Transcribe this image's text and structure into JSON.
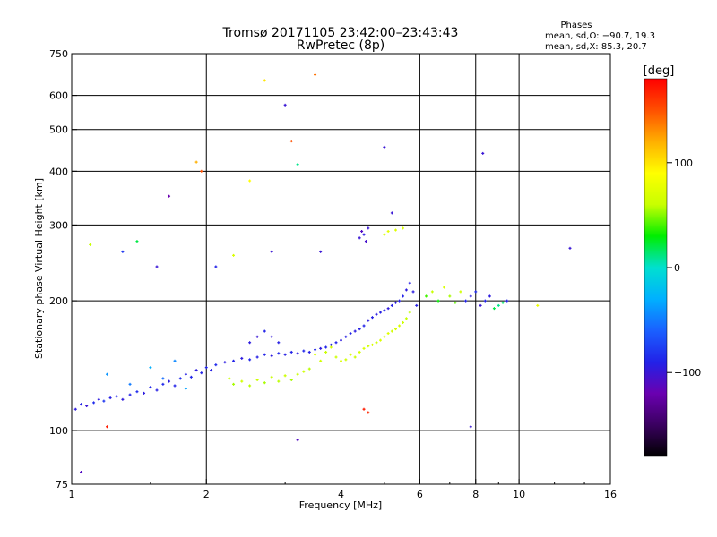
{
  "header": {
    "title_line1": "Tromsø 20171105 23:42:00–23:43:43",
    "title_line2": "RwPretec (8p)",
    "phases_title": "Phases",
    "phases_o": "mean, sd,O: −90.7, 19.3",
    "phases_x": "mean, sd,X:  85.3, 20.7"
  },
  "colorbar": {
    "unit": "[deg]",
    "ticks": [
      {
        "label": "100",
        "value": 100
      },
      {
        "label": "0",
        "value": 0
      },
      {
        "label": "−100",
        "value": -100
      }
    ],
    "range": [
      -180,
      180
    ],
    "colors": [
      "#000000",
      "#3a0060",
      "#6a00b0",
      "#2222e8",
      "#1a60ff",
      "#00b0ff",
      "#00e0d0",
      "#00ee00",
      "#c8ff00",
      "#ffff00",
      "#ffb000",
      "#ff5000",
      "#ff0000"
    ]
  },
  "chart_data": {
    "type": "scatter",
    "title": "Tromsø 20171105 23:42:00–23:43:43",
    "subtitle": "RwPretec (8p)",
    "xlabel": "Frequency [MHz]",
    "ylabel": "Stationary phase Virtual Height [km]",
    "x_scale": "log",
    "y_scale": "log",
    "xlim": [
      1,
      16
    ],
    "ylim": [
      75,
      750
    ],
    "x_ticks": [
      1,
      2,
      4,
      6,
      8,
      10,
      16
    ],
    "x_tick_labels": [
      "1",
      "2",
      "4",
      "6",
      "8",
      "10",
      "16"
    ],
    "y_ticks": [
      75,
      100,
      200,
      300,
      400,
      500,
      600,
      750
    ],
    "y_tick_labels": [
      "75",
      "100",
      "200",
      "300",
      "400",
      "500",
      "600",
      "750"
    ],
    "x_gridlines": [
      2,
      4,
      6,
      8,
      10
    ],
    "y_gridlines": [
      100,
      200,
      300,
      400,
      500,
      600
    ],
    "grid": true,
    "color_variable": "phase [deg]",
    "series": [
      {
        "points": [
          [
            1.02,
            112,
            -95
          ],
          [
            1.05,
            115,
            -90
          ],
          [
            1.08,
            114,
            -100
          ],
          [
            1.12,
            116,
            -85
          ],
          [
            1.15,
            118,
            -95
          ],
          [
            1.18,
            117,
            -80
          ],
          [
            1.22,
            119,
            -92
          ],
          [
            1.26,
            120,
            -88
          ],
          [
            1.3,
            118,
            -96
          ],
          [
            1.35,
            121,
            -90
          ],
          [
            1.4,
            123,
            -85
          ],
          [
            1.45,
            122,
            -95
          ],
          [
            1.5,
            126,
            -88
          ],
          [
            1.55,
            124,
            -92
          ],
          [
            1.6,
            128,
            -86
          ],
          [
            1.65,
            130,
            -94
          ],
          [
            1.7,
            127,
            -90
          ],
          [
            1.75,
            132,
            -85
          ],
          [
            1.8,
            135,
            -92
          ],
          [
            1.85,
            133,
            -88
          ],
          [
            1.9,
            138,
            -95
          ],
          [
            1.95,
            136,
            -90
          ],
          [
            2.0,
            140,
            -88
          ],
          [
            2.05,
            138,
            -92
          ],
          [
            2.1,
            142,
            -86
          ],
          [
            2.2,
            144,
            -94
          ],
          [
            2.3,
            145,
            -90
          ],
          [
            2.4,
            147,
            -95
          ],
          [
            2.5,
            146,
            -88
          ],
          [
            2.6,
            148,
            -92
          ],
          [
            2.7,
            150,
            -90
          ],
          [
            2.8,
            149,
            -95
          ],
          [
            2.9,
            151,
            -88
          ],
          [
            3.0,
            150,
            -92
          ],
          [
            3.1,
            152,
            -90
          ],
          [
            3.2,
            151,
            -95
          ],
          [
            3.3,
            153,
            -88
          ],
          [
            3.4,
            152,
            -92
          ],
          [
            3.5,
            154,
            -90
          ],
          [
            3.6,
            155,
            -95
          ],
          [
            3.7,
            156,
            -88
          ],
          [
            3.8,
            158,
            -92
          ],
          [
            3.9,
            160,
            -90
          ],
          [
            4.0,
            162,
            -95
          ],
          [
            4.1,
            165,
            -92
          ],
          [
            4.2,
            168,
            -90
          ],
          [
            4.3,
            170,
            -94
          ],
          [
            4.4,
            172,
            -92
          ],
          [
            4.5,
            175,
            -90
          ],
          [
            4.6,
            180,
            -95
          ],
          [
            4.7,
            183,
            -92
          ],
          [
            4.8,
            186,
            -94
          ],
          [
            4.9,
            188,
            -92
          ],
          [
            5.0,
            190,
            -90
          ],
          [
            5.1,
            192,
            -96
          ],
          [
            5.2,
            195,
            -92
          ],
          [
            5.3,
            198,
            -94
          ],
          [
            5.4,
            200,
            -92
          ],
          [
            5.5,
            205,
            -90
          ],
          [
            5.6,
            212,
            -95
          ],
          [
            5.7,
            220,
            -92
          ],
          [
            5.8,
            210,
            -94
          ],
          [
            5.9,
            195,
            -92
          ]
        ]
      },
      {
        "points": [
          [
            1.2,
            135,
            -40
          ],
          [
            1.35,
            128,
            -50
          ],
          [
            1.5,
            140,
            -30
          ],
          [
            1.6,
            132,
            -55
          ],
          [
            1.7,
            145,
            -45
          ],
          [
            1.8,
            125,
            -35
          ],
          [
            2.25,
            132,
            60
          ],
          [
            2.3,
            128,
            55
          ],
          [
            2.4,
            130,
            65
          ],
          [
            2.5,
            127,
            58
          ],
          [
            2.6,
            131,
            62
          ],
          [
            2.7,
            129,
            55
          ],
          [
            2.8,
            133,
            60
          ],
          [
            2.9,
            130,
            58
          ],
          [
            3.0,
            134,
            62
          ],
          [
            3.1,
            131,
            55
          ],
          [
            3.2,
            135,
            60
          ],
          [
            3.3,
            137,
            64
          ],
          [
            3.4,
            139,
            58
          ],
          [
            3.5,
            150,
            70
          ],
          [
            3.6,
            145,
            65
          ],
          [
            3.7,
            152,
            60
          ],
          [
            3.8,
            156,
            68
          ],
          [
            3.9,
            148,
            62
          ],
          [
            4.0,
            145,
            70
          ],
          [
            4.1,
            146,
            65
          ],
          [
            4.2,
            150,
            68
          ],
          [
            4.3,
            148,
            62
          ],
          [
            4.4,
            152,
            66
          ],
          [
            4.5,
            155,
            70
          ],
          [
            4.6,
            157,
            64
          ],
          [
            4.7,
            158,
            68
          ],
          [
            4.8,
            160,
            65
          ],
          [
            4.9,
            162,
            70
          ],
          [
            5.0,
            165,
            66
          ],
          [
            5.1,
            168,
            72
          ],
          [
            5.2,
            170,
            65
          ],
          [
            5.3,
            172,
            70
          ],
          [
            5.4,
            175,
            68
          ],
          [
            5.5,
            178,
            62
          ],
          [
            5.6,
            182,
            60
          ],
          [
            5.7,
            188,
            58
          ]
        ]
      },
      {
        "points": [
          [
            2.5,
            160,
            -95
          ],
          [
            2.6,
            165,
            -100
          ],
          [
            2.7,
            170,
            -90
          ],
          [
            2.8,
            165,
            -98
          ],
          [
            2.9,
            160,
            -92
          ],
          [
            4.4,
            280,
            -100
          ],
          [
            4.45,
            290,
            -110
          ],
          [
            4.5,
            285,
            -95
          ],
          [
            4.55,
            275,
            -105
          ],
          [
            4.6,
            295,
            -100
          ],
          [
            5.0,
            285,
            70
          ],
          [
            5.1,
            290,
            75
          ],
          [
            5.3,
            292,
            72
          ],
          [
            5.5,
            295,
            68
          ],
          [
            6.2,
            205,
            40
          ],
          [
            6.4,
            210,
            60
          ],
          [
            6.6,
            200,
            30
          ],
          [
            6.8,
            215,
            70
          ],
          [
            7.0,
            205,
            55
          ],
          [
            7.2,
            198,
            45
          ],
          [
            7.4,
            210,
            65
          ],
          [
            7.6,
            200,
            -90
          ],
          [
            7.8,
            205,
            -95
          ],
          [
            8.0,
            210,
            -85
          ],
          [
            8.2,
            195,
            -100
          ],
          [
            8.4,
            200,
            -90
          ],
          [
            8.6,
            205,
            -95
          ],
          [
            8.8,
            192,
            20
          ],
          [
            9.0,
            195,
            10
          ],
          [
            9.2,
            198,
            15
          ],
          [
            9.4,
            200,
            -90
          ],
          [
            11.0,
            195,
            80
          ],
          [
            13.0,
            265,
            -100
          ]
        ]
      },
      {
        "points": [
          [
            1.1,
            270,
            60
          ],
          [
            1.3,
            260,
            -80
          ],
          [
            1.4,
            275,
            20
          ],
          [
            1.55,
            240,
            -100
          ],
          [
            1.65,
            350,
            -120
          ],
          [
            1.9,
            420,
            120
          ],
          [
            1.95,
            400,
            150
          ],
          [
            2.1,
            240,
            -90
          ],
          [
            2.3,
            255,
            70
          ],
          [
            2.5,
            380,
            90
          ],
          [
            2.7,
            650,
            100
          ],
          [
            2.8,
            260,
            -100
          ],
          [
            3.0,
            570,
            -100
          ],
          [
            3.1,
            470,
            150
          ],
          [
            3.2,
            415,
            10
          ],
          [
            3.5,
            670,
            140
          ],
          [
            3.6,
            260,
            -100
          ],
          [
            5.0,
            455,
            -100
          ],
          [
            5.2,
            320,
            -100
          ],
          [
            4.5,
            112,
            170
          ],
          [
            4.6,
            110,
            165
          ],
          [
            3.2,
            95,
            -110
          ],
          [
            1.2,
            102,
            170
          ],
          [
            1.05,
            80,
            -110
          ],
          [
            7.8,
            102,
            -100
          ],
          [
            8.3,
            440,
            -100
          ]
        ]
      }
    ]
  }
}
